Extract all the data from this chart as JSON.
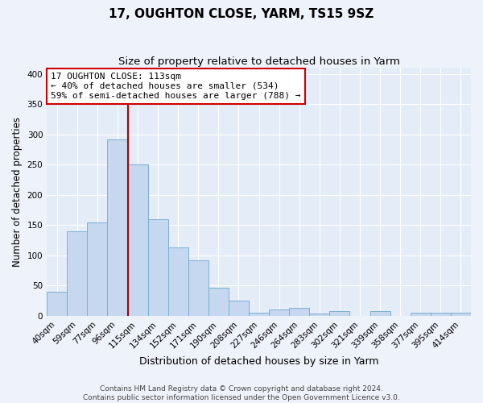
{
  "title": "17, OUGHTON CLOSE, YARM, TS15 9SZ",
  "subtitle": "Size of property relative to detached houses in Yarm",
  "xlabel": "Distribution of detached houses by size in Yarm",
  "ylabel": "Number of detached properties",
  "bar_labels": [
    "40sqm",
    "59sqm",
    "77sqm",
    "96sqm",
    "115sqm",
    "134sqm",
    "152sqm",
    "171sqm",
    "190sqm",
    "208sqm",
    "227sqm",
    "246sqm",
    "264sqm",
    "283sqm",
    "302sqm",
    "321sqm",
    "339sqm",
    "358sqm",
    "377sqm",
    "395sqm",
    "414sqm"
  ],
  "bar_heights": [
    40,
    140,
    155,
    292,
    251,
    160,
    113,
    92,
    46,
    25,
    5,
    11,
    13,
    4,
    8,
    0,
    8,
    0,
    5,
    5,
    5
  ],
  "bar_color": "#c5d8f0",
  "bar_edgecolor": "#7bafd4",
  "vline_x": 4.0,
  "vline_color": "#aa0000",
  "annotation_text": "17 OUGHTON CLOSE: 113sqm\n← 40% of detached houses are smaller (534)\n59% of semi-detached houses are larger (788) →",
  "annotation_box_edgecolor": "#cc0000",
  "ylim": [
    0,
    410
  ],
  "yticks": [
    0,
    50,
    100,
    150,
    200,
    250,
    300,
    350,
    400
  ],
  "footer_line1": "Contains HM Land Registry data © Crown copyright and database right 2024.",
  "footer_line2": "Contains public sector information licensed under the Open Government Licence v3.0.",
  "title_fontsize": 11,
  "subtitle_fontsize": 9.5,
  "xlabel_fontsize": 9,
  "ylabel_fontsize": 8.5,
  "tick_fontsize": 7.5,
  "annotation_fontsize": 8,
  "footer_fontsize": 6.5,
  "background_color": "#eef2fa",
  "plot_background_color": "#e4ecf7"
}
